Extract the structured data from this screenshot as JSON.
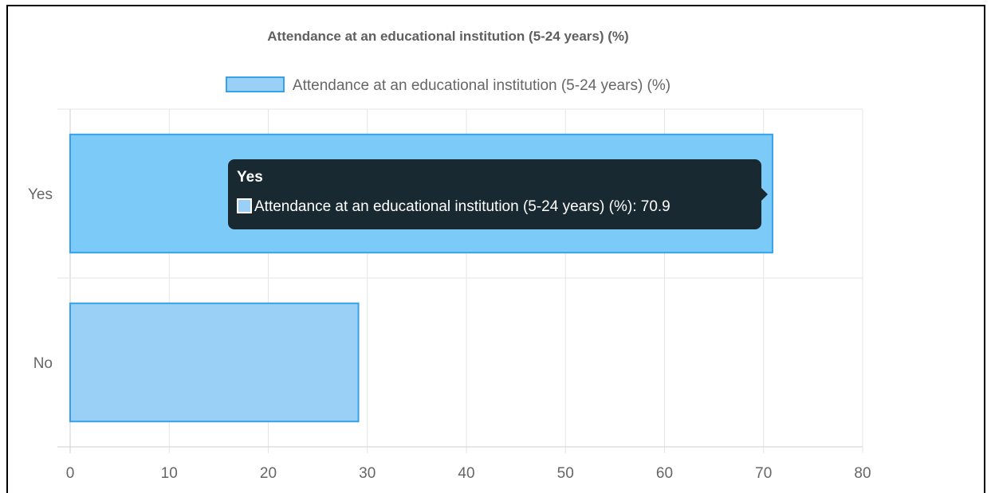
{
  "chart_data": {
    "type": "bar",
    "orientation": "horizontal",
    "title": "Attendance at an educational institution (5-24 years) (%)",
    "categories": [
      "Yes",
      "No"
    ],
    "series": [
      {
        "name": "Attendance at an educational institution (5-24 years) (%)",
        "values": [
          70.9,
          29.1
        ]
      }
    ],
    "xlim": [
      0,
      80
    ],
    "x_ticks": [
      "0",
      "10",
      "20",
      "30",
      "40",
      "50",
      "60",
      "70",
      "80"
    ],
    "grid": true,
    "legend_position": "top",
    "colors": {
      "fill": "#9ad0f5",
      "hover_fill": "#7ccaf8",
      "border": "#36a2eb"
    }
  },
  "tooltip": {
    "title": "Yes",
    "text": "Attendance at an educational institution (5-24 years) (%): 70.9"
  }
}
